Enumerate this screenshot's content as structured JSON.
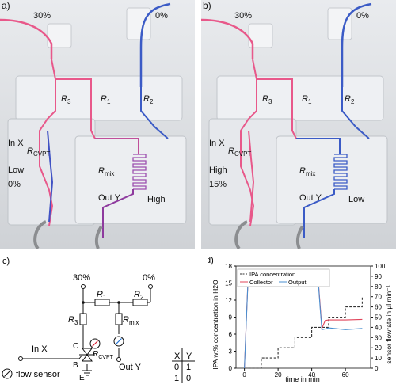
{
  "panel_a": {
    "letter": "a)",
    "conc_left": "30%",
    "conc_right": "0%",
    "r3": "R",
    "r3_sub": "3",
    "r1": "R",
    "r1_sub": "1",
    "r2": "R",
    "r2_sub": "2",
    "in_label": "In X",
    "rcvpt": "R",
    "rcvpt_sub": "CVPT",
    "state": "Low",
    "state_conc": "0%",
    "rmix": "R",
    "rmix_sub": "mix",
    "out_label": "Out Y",
    "output_state": "High"
  },
  "panel_b": {
    "letter": "b)",
    "conc_left": "30%",
    "conc_right": "0%",
    "r3": "R",
    "r3_sub": "3",
    "r1": "R",
    "r1_sub": "1",
    "r2": "R",
    "r2_sub": "2",
    "in_label": "In X",
    "rcvpt": "R",
    "rcvpt_sub": "CVPT",
    "state": "High",
    "state_conc": "15%",
    "rmix": "R",
    "rmix_sub": "mix",
    "out_label": "Out Y",
    "output_state": "Low"
  },
  "panel_c": {
    "letter": "c)",
    "conc_left": "30%",
    "conc_right": "0%",
    "r1": "R",
    "r1_sub": "1",
    "r2": "R",
    "r2_sub": "2",
    "r3": "R",
    "r3_sub": "3",
    "rmix": "R",
    "rmix_sub": "mix",
    "rcvpt": "R",
    "rcvpt_sub": "CVPT",
    "node_c": "C",
    "node_b": "B",
    "node_e": "E",
    "in_label": "In X",
    "out_label": "Out Y",
    "legend_label": "flow sensor",
    "truth_table": {
      "headers": [
        "X",
        "Y"
      ],
      "rows": [
        [
          "0",
          "1"
        ],
        [
          "1",
          "0"
        ]
      ]
    }
  },
  "panel_d": {
    "letter": "d)",
    "legend": [
      "IPA concentration",
      "Collector",
      "Output"
    ],
    "colors": {
      "ipa": "#333333",
      "collector": "#e0445a",
      "output": "#4a8fd0"
    },
    "chart_data": {
      "type": "line",
      "xlabel": "time in min",
      "ylabel_left": "IPA wt% concentration in H2O",
      "ylabel_right": "sensor flowrate in µl min⁻¹",
      "xlim": [
        -5,
        75
      ],
      "ylim_left": [
        0,
        18
      ],
      "ylim_right": [
        0,
        100
      ],
      "xticks": [
        0,
        20,
        40,
        60
      ],
      "yticks_left": [
        0,
        3,
        6,
        9,
        12,
        15,
        18
      ],
      "yticks_right": [
        0,
        10,
        20,
        30,
        40,
        50,
        60,
        70,
        80,
        90,
        100
      ],
      "series": [
        {
          "name": "IPA concentration",
          "axis": "right",
          "style": "dashed",
          "x": [
            0,
            10,
            10,
            20,
            20,
            30,
            30,
            40,
            40,
            50,
            50,
            60,
            60,
            70,
            70
          ],
          "y": [
            0,
            0,
            10,
            10,
            20,
            20,
            30,
            30,
            40,
            40,
            50,
            50,
            60,
            60,
            70
          ]
        },
        {
          "name": "Collector",
          "axis": "left",
          "style": "solid",
          "x": [
            0,
            2,
            5,
            44,
            45,
            46,
            48,
            50,
            60,
            70
          ],
          "y": [
            0,
            14.8,
            15.1,
            15.0,
            11,
            7,
            8.4,
            8.5,
            8.5,
            8.6
          ]
        },
        {
          "name": "Output",
          "axis": "left",
          "style": "solid",
          "x": [
            0,
            2,
            5,
            44,
            45,
            46,
            48,
            50,
            60,
            70
          ],
          "y": [
            0,
            14.6,
            14.9,
            14.8,
            10.5,
            6.8,
            6.9,
            7.1,
            6.8,
            7.0
          ]
        }
      ]
    }
  }
}
